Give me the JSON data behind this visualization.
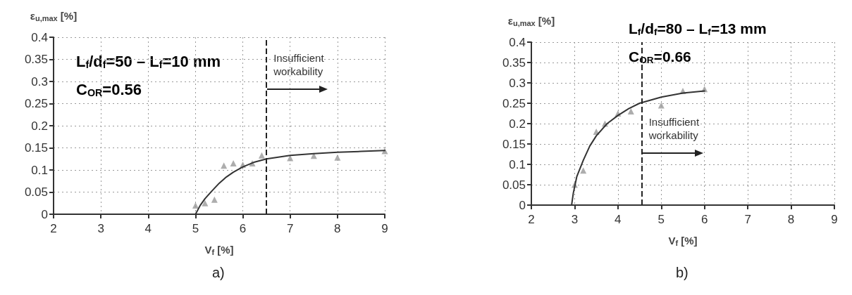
{
  "chart_data": [
    {
      "type": "scatter",
      "xlabel": "V$_{f}$ [%]",
      "ylabel": "ε$_{u,max}$ [%]",
      "xlim": [
        2,
        9
      ],
      "xticks": [
        2,
        3,
        4,
        5,
        6,
        7,
        8,
        9
      ],
      "ylim": [
        0,
        0.4
      ],
      "yticks": [
        0,
        0.05,
        0.1,
        0.15,
        0.2,
        0.25,
        0.3,
        0.35,
        0.4
      ],
      "grid": true,
      "marker": "triangle",
      "series": [
        {
          "color": "#999999",
          "x": [
            5,
            5.2,
            5.4,
            5.6,
            5.8,
            6,
            6.2,
            6.4,
            7,
            7.5,
            8,
            9
          ],
          "values": [
            0.02,
            0.025,
            0.033,
            0.11,
            0.115,
            0.112,
            0.115,
            0.133,
            0.127,
            0.132,
            0.128,
            0.143
          ]
        },
        {
          "type": "line",
          "color": "#333333",
          "marker": "none",
          "line_style": "solid",
          "x": [
            5,
            5.1,
            5.2,
            5.35,
            5.5,
            5.65,
            5.8,
            6,
            6.25,
            6.5,
            7,
            7.5,
            8,
            8.5,
            9
          ],
          "values": [
            0,
            0.02,
            0.035,
            0.053,
            0.07,
            0.084,
            0.095,
            0.107,
            0.118,
            0.125,
            0.133,
            0.137,
            0.14,
            0.142,
            0.144
          ]
        }
      ],
      "ref_lines": [
        {
          "axis": "x",
          "value": 6.5,
          "color": "#222222",
          "line_style": "dashed"
        }
      ],
      "annotations": [
        "L$_{f}$/d$_{f}$=50 – L$_{f}$=10 mm",
        "C$_{OR}$=0.56",
        {
          "text": "Insufficient\nworkability",
          "x": 6.5,
          "y": 0.35
        },
        "a)"
      ]
    },
    {
      "type": "scatter",
      "xlabel": "V$_{f}$ [%]",
      "ylabel": "ε$_{u,max}$ [%]",
      "xlim": [
        2,
        9
      ],
      "xticks": [
        2,
        3,
        4,
        5,
        6,
        7,
        8,
        9
      ],
      "ylim": [
        0,
        0.4
      ],
      "yticks": [
        0,
        0.05,
        0.1,
        0.15,
        0.2,
        0.25,
        0.3,
        0.35,
        0.4
      ],
      "grid": true,
      "marker": "triangle",
      "series": [
        {
          "color": "#999999",
          "x": [
            3,
            3.2,
            3.5,
            3.7,
            4,
            4.3,
            5,
            5.5,
            6
          ],
          "values": [
            0.05,
            0.085,
            0.18,
            0.2,
            0.225,
            0.23,
            0.245,
            0.28,
            0.285
          ]
        },
        {
          "type": "line",
          "color": "#333333",
          "marker": "none",
          "line_style": "solid",
          "x": [
            2.93,
            2.97,
            3.05,
            3.2,
            3.35,
            3.5,
            3.75,
            4,
            4.25,
            4.5,
            5,
            5.5,
            6
          ],
          "values": [
            0,
            0.03,
            0.07,
            0.11,
            0.145,
            0.17,
            0.2,
            0.22,
            0.237,
            0.25,
            0.265,
            0.275,
            0.28
          ]
        }
      ],
      "ref_lines": [
        {
          "axis": "x",
          "value": 4.55,
          "color": "#222222",
          "line_style": "dashed"
        }
      ],
      "annotations": [
        "L$_{f}$/d$_{f}$=80 – L$_{f}$=13 mm",
        "C$_{OR}$=0.66",
        {
          "text": "Insufficient\nworkability",
          "x": 4.55,
          "y": 0.2
        },
        "b)"
      ]
    }
  ]
}
